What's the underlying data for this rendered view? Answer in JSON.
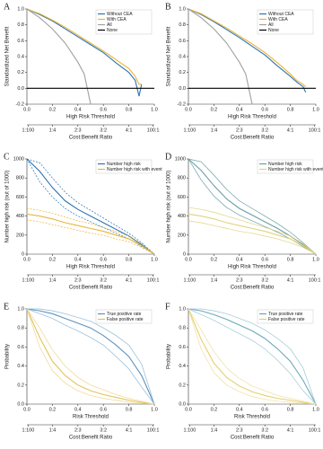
{
  "chart_data": [
    {
      "type": "line",
      "panel": "A",
      "ylabel": "Standardized Net Benefit",
      "xlabel": "High Risk Threshold",
      "x2label": "Cost:Benefit Ratio",
      "xlim": [
        0,
        1
      ],
      "xticks": [
        {
          "value": 0,
          "label": "0.0"
        },
        0.2,
        0.4,
        0.6,
        0.8,
        {
          "value": 1,
          "label": "1.0"
        }
      ],
      "ylim": [
        -0.2,
        1
      ],
      "yticks": [
        -0.2,
        {
          "value": 0,
          "label": "0.0"
        },
        0.2,
        0.4,
        0.6,
        0.8,
        {
          "value": 1,
          "label": "1.0"
        }
      ],
      "x2ticks": [
        {
          "value": 0.0099,
          "label": "1:100"
        },
        {
          "value": 0.2,
          "label": "1:4"
        },
        {
          "value": 0.4,
          "label": "2:3"
        },
        {
          "value": 0.6,
          "label": "3:2"
        },
        {
          "value": 0.8,
          "label": "4:1"
        },
        {
          "value": 0.99,
          "label": "100:1"
        }
      ],
      "legend": "upper right",
      "series": [
        {
          "name": "Without CEA",
          "color": "#2b73b3",
          "x": [
            0,
            0.1,
            0.2,
            0.3,
            0.4,
            0.5,
            0.6,
            0.7,
            0.8,
            0.85,
            0.88,
            0.9
          ],
          "values": [
            1,
            0.93,
            0.85,
            0.75,
            0.65,
            0.55,
            0.45,
            0.32,
            0.2,
            0.1,
            -0.1,
            0.05
          ]
        },
        {
          "name": "With CEA",
          "color": "#e8b53a",
          "x": [
            0,
            0.1,
            0.2,
            0.3,
            0.4,
            0.5,
            0.6,
            0.7,
            0.8,
            0.85,
            0.88,
            0.9
          ],
          "values": [
            1,
            0.94,
            0.86,
            0.77,
            0.67,
            0.57,
            0.47,
            0.36,
            0.25,
            0.15,
            0.05,
            0.05
          ]
        },
        {
          "name": "All",
          "color": "#a0a0a0",
          "x": [
            0,
            0.1,
            0.2,
            0.3,
            0.4,
            0.45,
            0.5
          ],
          "values": [
            1,
            0.89,
            0.75,
            0.57,
            0.33,
            0.18,
            -0.2
          ]
        },
        {
          "name": "None",
          "color": "#000000",
          "x": [
            0,
            1
          ],
          "values": [
            0,
            0
          ]
        }
      ]
    },
    {
      "type": "line",
      "panel": "B",
      "ylabel": "Standardized Net Benefit",
      "xlabel": "High Risk Threshold",
      "x2label": "Cost:Benefit Ratio",
      "xlim": [
        0,
        1
      ],
      "xticks": [
        {
          "value": 0,
          "label": "0.0"
        },
        0.2,
        0.4,
        0.6,
        0.8,
        {
          "value": 1,
          "label": "1.0"
        }
      ],
      "ylim": [
        -0.2,
        1
      ],
      "yticks": [
        -0.2,
        {
          "value": 0,
          "label": "0.0"
        },
        0.2,
        0.4,
        0.6,
        0.8,
        {
          "value": 1,
          "label": "1.0"
        }
      ],
      "x2ticks": [
        {
          "value": 0.0099,
          "label": "1:100"
        },
        {
          "value": 0.2,
          "label": "1:4"
        },
        {
          "value": 0.4,
          "label": "2:3"
        },
        {
          "value": 0.6,
          "label": "3:2"
        },
        {
          "value": 0.8,
          "label": "4:1"
        },
        {
          "value": 0.99,
          "label": "100:1"
        }
      ],
      "legend": "upper right",
      "series": [
        {
          "name": "Without CEA",
          "color": "#2b73b3",
          "x": [
            0,
            0.1,
            0.2,
            0.3,
            0.4,
            0.5,
            0.6,
            0.7,
            0.8,
            0.85,
            0.9,
            0.92
          ],
          "values": [
            1,
            0.93,
            0.84,
            0.74,
            0.64,
            0.53,
            0.42,
            0.28,
            0.15,
            0.08,
            0.02,
            -0.05
          ]
        },
        {
          "name": "With CEA",
          "color": "#e8b53a",
          "x": [
            0,
            0.1,
            0.2,
            0.3,
            0.4,
            0.5,
            0.6,
            0.7,
            0.8,
            0.85,
            0.9,
            0.92
          ],
          "values": [
            1,
            0.94,
            0.85,
            0.76,
            0.66,
            0.56,
            0.45,
            0.32,
            0.18,
            0.1,
            0.05,
            0.02
          ]
        },
        {
          "name": "All",
          "color": "#a0a0a0",
          "x": [
            0,
            0.1,
            0.2,
            0.3,
            0.4,
            0.45,
            0.5
          ],
          "values": [
            1,
            0.89,
            0.75,
            0.57,
            0.33,
            0.18,
            -0.2
          ]
        },
        {
          "name": "None",
          "color": "#000000",
          "x": [
            0,
            1
          ],
          "values": [
            0,
            0
          ]
        }
      ]
    },
    {
      "type": "line",
      "panel": "C",
      "ylabel": "Number high risk (out of 1000)",
      "xlabel": "High Risk Threshold",
      "x2label": "Cost:Benefit Ratio",
      "xlim": [
        0,
        1
      ],
      "xticks": [
        {
          "value": 0,
          "label": "0.0"
        },
        0.2,
        0.4,
        0.6,
        0.8,
        {
          "value": 1,
          "label": "1.0"
        }
      ],
      "ylim": [
        0,
        1000
      ],
      "yticks": [
        0,
        200,
        400,
        600,
        800,
        1000
      ],
      "x2ticks": [
        {
          "value": 0.0099,
          "label": "1:100"
        },
        {
          "value": 0.2,
          "label": "1:4"
        },
        {
          "value": 0.4,
          "label": "2:3"
        },
        {
          "value": 0.6,
          "label": "3:2"
        },
        {
          "value": 0.8,
          "label": "4:1"
        },
        {
          "value": 0.99,
          "label": "100:1"
        }
      ],
      "legend": "upper right",
      "x": [
        0,
        0.1,
        0.2,
        0.3,
        0.4,
        0.5,
        0.6,
        0.7,
        0.8,
        0.9,
        1
      ],
      "series": [
        {
          "name": "Number high risk",
          "color": "#2b73b3",
          "values": [
            1000,
            870,
            700,
            560,
            470,
            400,
            330,
            260,
            190,
            100,
            0
          ]
        },
        {
          "color": "#2b73b3",
          "style": "dashed",
          "values": [
            1000,
            960,
            800,
            650,
            540,
            460,
            380,
            300,
            220,
            120,
            0
          ]
        },
        {
          "color": "#2b73b3",
          "style": "dashed",
          "values": [
            1000,
            760,
            600,
            480,
            400,
            340,
            280,
            220,
            160,
            80,
            0
          ]
        },
        {
          "name": "Number high risk with event",
          "color": "#e8b53a",
          "values": [
            420,
            400,
            370,
            330,
            300,
            270,
            240,
            200,
            160,
            90,
            0
          ]
        },
        {
          "color": "#e8b53a",
          "style": "dashed",
          "values": [
            480,
            460,
            430,
            390,
            350,
            320,
            280,
            240,
            190,
            110,
            0
          ]
        },
        {
          "color": "#e8b53a",
          "style": "dashed",
          "values": [
            360,
            340,
            310,
            280,
            250,
            220,
            200,
            160,
            130,
            70,
            0
          ]
        }
      ]
    },
    {
      "type": "line",
      "panel": "D",
      "ylabel": "Number high risk (out of 1000)",
      "xlabel": "High Risk Threshold",
      "x2label": "Cost:Benefit Ratio",
      "xlim": [
        0,
        1
      ],
      "xticks": [
        {
          "value": 0,
          "label": "0.0"
        },
        0.2,
        0.4,
        0.6,
        0.8,
        {
          "value": 1,
          "label": "1.0"
        }
      ],
      "ylim": [
        0,
        1000
      ],
      "yticks": [
        0,
        200,
        400,
        600,
        800,
        1000
      ],
      "x2ticks": [
        {
          "value": 0.0099,
          "label": "1:100"
        },
        {
          "value": 0.2,
          "label": "1:4"
        },
        {
          "value": 0.4,
          "label": "2:3"
        },
        {
          "value": 0.6,
          "label": "3:2"
        },
        {
          "value": 0.8,
          "label": "4:1"
        },
        {
          "value": 0.99,
          "label": "100:1"
        }
      ],
      "legend": "upper right",
      "x": [
        0,
        0.1,
        0.2,
        0.3,
        0.4,
        0.5,
        0.6,
        0.7,
        0.8,
        0.9,
        1
      ],
      "series": [
        {
          "name": "Number high risk",
          "color": "#6a9ea6",
          "values": [
            1000,
            880,
            720,
            580,
            480,
            410,
            340,
            270,
            190,
            100,
            0
          ]
        },
        {
          "color": "#6a9ea6",
          "style": "solid-thin",
          "values": [
            1000,
            970,
            830,
            680,
            560,
            480,
            400,
            320,
            230,
            120,
            0
          ]
        },
        {
          "color": "#6a9ea6",
          "style": "solid-thin",
          "values": [
            1000,
            780,
            610,
            490,
            410,
            350,
            290,
            230,
            160,
            80,
            0
          ]
        },
        {
          "name": "Number high risk with event",
          "color": "#e2d27e",
          "values": [
            420,
            400,
            370,
            330,
            300,
            270,
            240,
            200,
            160,
            90,
            0
          ]
        },
        {
          "color": "#e2d27e",
          "style": "solid-thin",
          "values": [
            490,
            470,
            440,
            400,
            360,
            320,
            280,
            240,
            190,
            110,
            0
          ]
        },
        {
          "color": "#e2d27e",
          "style": "solid-thin",
          "values": [
            350,
            330,
            300,
            270,
            240,
            220,
            190,
            160,
            120,
            70,
            0
          ]
        }
      ]
    },
    {
      "type": "line",
      "panel": "E",
      "ylabel": "Probability",
      "xlabel": "Risk Threshold",
      "x2label": "Cost:Benefit Ratio",
      "xlim": [
        0,
        1
      ],
      "xticks": [
        {
          "value": 0,
          "label": "0.0"
        },
        0.2,
        0.4,
        0.6,
        0.8,
        {
          "value": 1,
          "label": "1.0"
        }
      ],
      "ylim": [
        0,
        1
      ],
      "yticks": [
        {
          "value": 0,
          "label": "0.0"
        },
        0.2,
        0.4,
        0.6,
        0.8,
        {
          "value": 1,
          "label": "1.0"
        }
      ],
      "x2ticks": [
        {
          "value": 0.0099,
          "label": "1:100"
        },
        {
          "value": 0.2,
          "label": "1:4"
        },
        {
          "value": 0.4,
          "label": "2:3"
        },
        {
          "value": 0.6,
          "label": "3:2"
        },
        {
          "value": 0.8,
          "label": "4:1"
        },
        {
          "value": 0.99,
          "label": "100:1"
        }
      ],
      "legend": "upper right",
      "x": [
        0,
        0.1,
        0.2,
        0.3,
        0.4,
        0.5,
        0.6,
        0.7,
        0.8,
        0.9,
        1
      ],
      "series": [
        {
          "name": "True positive rate",
          "color": "#5b93c0",
          "values": [
            1,
            0.98,
            0.95,
            0.9,
            0.85,
            0.8,
            0.72,
            0.62,
            0.5,
            0.3,
            0
          ]
        },
        {
          "color": "#8fb8d6",
          "values": [
            1,
            1,
            0.98,
            0.95,
            0.91,
            0.87,
            0.8,
            0.72,
            0.62,
            0.42,
            0
          ]
        },
        {
          "color": "#8fb8d6",
          "values": [
            1,
            0.95,
            0.9,
            0.83,
            0.77,
            0.7,
            0.62,
            0.5,
            0.37,
            0.18,
            0
          ]
        },
        {
          "name": "False positive rate",
          "color": "#e3c35a",
          "values": [
            1,
            0.7,
            0.45,
            0.3,
            0.2,
            0.14,
            0.1,
            0.07,
            0.04,
            0.02,
            0
          ]
        },
        {
          "color": "#eed690",
          "values": [
            1,
            0.8,
            0.57,
            0.4,
            0.28,
            0.2,
            0.15,
            0.1,
            0.06,
            0.03,
            0
          ]
        },
        {
          "color": "#eed690",
          "values": [
            1,
            0.6,
            0.35,
            0.22,
            0.14,
            0.09,
            0.06,
            0.04,
            0.02,
            0.01,
            0
          ]
        }
      ]
    },
    {
      "type": "line",
      "panel": "F",
      "ylabel": "Probability",
      "xlabel": "Risk Threshold",
      "x2label": "Cost:Benefit Ratio",
      "xlim": [
        0,
        1
      ],
      "xticks": [
        {
          "value": 0,
          "label": "0.0"
        },
        0.2,
        0.4,
        0.6,
        0.8,
        {
          "value": 1,
          "label": "1.0"
        }
      ],
      "ylim": [
        0,
        1
      ],
      "yticks": [
        {
          "value": 0,
          "label": "0.0"
        },
        0.2,
        0.4,
        0.6,
        0.8,
        {
          "value": 1,
          "label": "1.0"
        }
      ],
      "x2ticks": [
        {
          "value": 0.0099,
          "label": "1:100"
        },
        {
          "value": 0.2,
          "label": "1:4"
        },
        {
          "value": 0.4,
          "label": "2:3"
        },
        {
          "value": 0.6,
          "label": "3:2"
        },
        {
          "value": 0.8,
          "label": "4:1"
        },
        {
          "value": 0.99,
          "label": "100:1"
        }
      ],
      "legend": "upper right",
      "x": [
        0,
        0.1,
        0.2,
        0.3,
        0.4,
        0.5,
        0.6,
        0.7,
        0.8,
        0.9,
        1
      ],
      "series": [
        {
          "name": "True positive rate",
          "color": "#6aa9bd",
          "values": [
            1,
            0.98,
            0.94,
            0.89,
            0.83,
            0.77,
            0.69,
            0.58,
            0.45,
            0.25,
            0
          ]
        },
        {
          "color": "#9cc7d4",
          "values": [
            1,
            1,
            0.98,
            0.95,
            0.9,
            0.85,
            0.78,
            0.69,
            0.58,
            0.38,
            0
          ]
        },
        {
          "color": "#9cc7d4",
          "values": [
            1,
            0.94,
            0.88,
            0.81,
            0.74,
            0.67,
            0.58,
            0.46,
            0.32,
            0.14,
            0
          ]
        },
        {
          "name": "False positive rate",
          "color": "#e6cf6e",
          "values": [
            1,
            0.68,
            0.43,
            0.28,
            0.19,
            0.13,
            0.09,
            0.06,
            0.04,
            0.02,
            0
          ]
        },
        {
          "color": "#efdf9c",
          "values": [
            1,
            0.78,
            0.55,
            0.38,
            0.27,
            0.19,
            0.14,
            0.09,
            0.06,
            0.03,
            0
          ]
        },
        {
          "color": "#efdf9c",
          "values": [
            1,
            0.58,
            0.33,
            0.2,
            0.13,
            0.08,
            0.05,
            0.03,
            0.02,
            0.01,
            0
          ]
        }
      ]
    }
  ]
}
